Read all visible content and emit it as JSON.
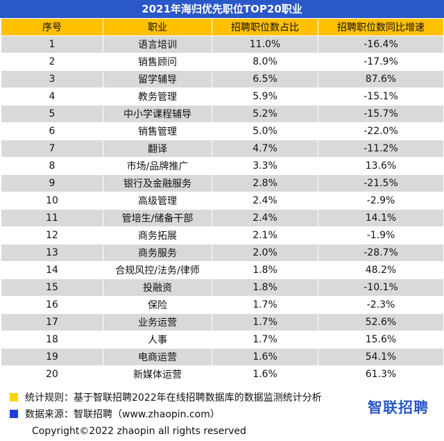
{
  "title": "2021年海归优先职位TOP20职业",
  "headers": [
    "序号",
    "职业",
    "招聘职位数占比",
    "招聘职位数同比增速"
  ],
  "rows": [
    [
      "1",
      "语言培训",
      "11.0%",
      "-16.4%"
    ],
    [
      "2",
      "销售顾问",
      "8.0%",
      "-17.9%"
    ],
    [
      "3",
      "留学辅导",
      "6.5%",
      "87.6%"
    ],
    [
      "4",
      "教务管理",
      "5.9%",
      "-15.1%"
    ],
    [
      "5",
      "中小学课程辅导",
      "5.2%",
      "-15.7%"
    ],
    [
      "6",
      "销售管理",
      "5.0%",
      "-22.0%"
    ],
    [
      "7",
      "翻译",
      "4.7%",
      "-11.2%"
    ],
    [
      "8",
      "市场/品牌推广",
      "3.3%",
      "13.6%"
    ],
    [
      "9",
      "银行及金融服务",
      "2.8%",
      "-21.5%"
    ],
    [
      "10",
      "高级管理",
      "2.4%",
      "-2.9%"
    ],
    [
      "11",
      "管培生/储备干部",
      "2.4%",
      "14.1%"
    ],
    [
      "12",
      "商务拓展",
      "2.1%",
      "-1.9%"
    ],
    [
      "13",
      "商务服务",
      "2.0%",
      "-28.7%"
    ],
    [
      "14",
      "合规风控/法务/律师",
      "1.8%",
      "48.2%"
    ],
    [
      "15",
      "投融资",
      "1.8%",
      "-10.1%"
    ],
    [
      "16",
      "保险",
      "1.7%",
      "-2.3%"
    ],
    [
      "17",
      "业务运营",
      "1.7%",
      "52.6%"
    ],
    [
      "18",
      "人事",
      "1.7%",
      "15.6%"
    ],
    [
      "19",
      "电商运营",
      "1.6%",
      "54.1%"
    ],
    [
      "20",
      "新媒体运营",
      "1.6%",
      "61.3%"
    ]
  ],
  "notes": {
    "rule": "统计规则：基于智联招聘2022年在线招聘数据库的数据监测统计分析",
    "source": "数据来源：智联招聘（www.zhaopin.com）"
  },
  "logo": "智联招聘",
  "copyright": "Copyright©2022 zhaopin all rights reserved",
  "colors": {
    "title_bg": "#2a58c8",
    "header_bg": "#ffc000",
    "stripe": "#d9d9d9",
    "bullet_yellow": "#ffd200",
    "bullet_blue": "#1f3fdd"
  }
}
